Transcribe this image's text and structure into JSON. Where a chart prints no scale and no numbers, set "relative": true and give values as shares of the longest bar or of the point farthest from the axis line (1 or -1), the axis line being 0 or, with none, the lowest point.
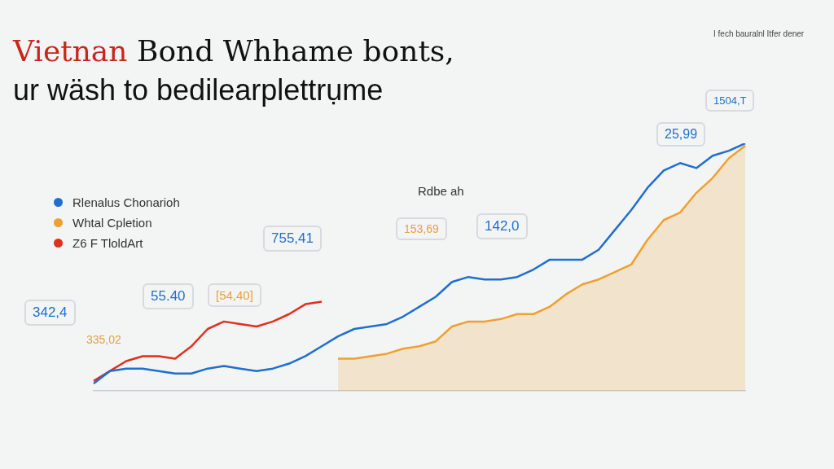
{
  "chart_data": {
    "type": "line",
    "title": "Vietnan Bond Whhame bonts,",
    "subtitle": "ur wäsh to bedilearplettrụme",
    "relative": true,
    "legend": "left",
    "marker": "none",
    "line_style": "solid",
    "categories": [
      null,
      null,
      null,
      null,
      null,
      null,
      null,
      null,
      null,
      null,
      null,
      null,
      null,
      null,
      null,
      null,
      null,
      null,
      null,
      null,
      null,
      null,
      null,
      null,
      null,
      null,
      null,
      null,
      null,
      null,
      null,
      null,
      null,
      null,
      null,
      null,
      null,
      null,
      null,
      null,
      null
    ],
    "series": [
      {
        "name": "Rlenalus Chonarioh",
        "color": "#1f6fd1",
        "values": [
          0.03,
          0.08,
          0.09,
          0.09,
          0.08,
          0.07,
          0.07,
          0.09,
          0.1,
          0.09,
          0.08,
          0.09,
          0.11,
          0.14,
          0.18,
          0.22,
          0.25,
          0.26,
          0.27,
          0.3,
          0.34,
          0.38,
          0.44,
          0.46,
          0.45,
          0.45,
          0.46,
          0.49,
          0.53,
          0.53,
          0.53,
          0.57,
          0.65,
          0.73,
          0.82,
          0.89,
          0.92,
          0.9,
          0.95,
          0.97,
          1
        ]
      },
      {
        "name": "Whtal Cpletion",
        "type": "area",
        "color": "#f0a030",
        "values": [
          null,
          null,
          null,
          null,
          null,
          null,
          null,
          null,
          null,
          null,
          null,
          null,
          null,
          null,
          null,
          0.13,
          0.13,
          0.14,
          0.15,
          0.17,
          0.18,
          0.2,
          0.26,
          0.28,
          0.28,
          0.29,
          0.31,
          0.31,
          0.34,
          0.39,
          0.43,
          0.45,
          0.48,
          0.51,
          0.61,
          0.69,
          0.72,
          0.8,
          0.86,
          0.94,
          0.99
        ]
      },
      {
        "name": "Z6 F TloldArt",
        "color": "#e0301e",
        "values": [
          0.04,
          0.08,
          0.12,
          0.14,
          0.14,
          0.13,
          0.18,
          0.25,
          0.28,
          0.27,
          0.26,
          0.28,
          0.31,
          0.35,
          0.36,
          null,
          null,
          null,
          null,
          null,
          null,
          null,
          null,
          null,
          null,
          null,
          null,
          null,
          null,
          null,
          null,
          null,
          null,
          null,
          null,
          null,
          null,
          null,
          null,
          null,
          null
        ]
      }
    ],
    "annotations": [
      "342,4",
      "335,02",
      "55.40",
      "[54,40]",
      "755,41",
      "Rdbe ah",
      "153,69",
      "142,0",
      "25,99",
      "1504,T",
      "I fech bauralnl Itfer dener"
    ]
  }
}
